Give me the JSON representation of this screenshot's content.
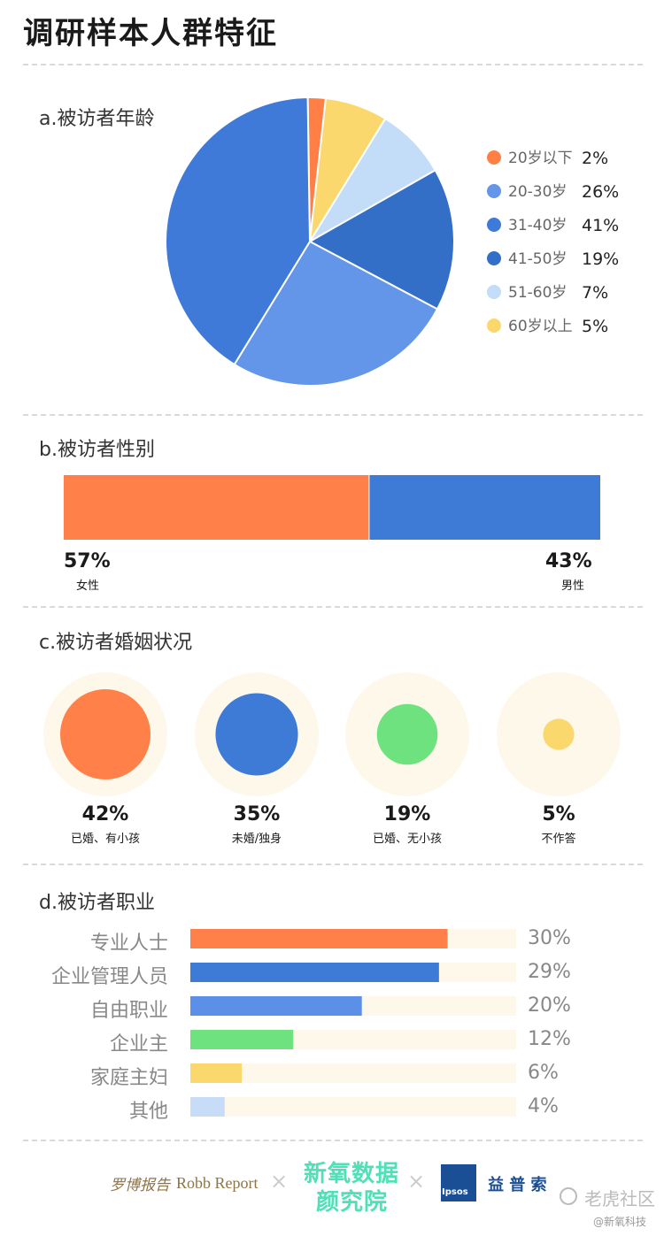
{
  "page": {
    "title": "调研样本人群特征"
  },
  "sections": {
    "age": "a.被访者年龄",
    "gender": "b.被访者性别",
    "marriage": "c.被访者婚姻状况",
    "occupation": "d.被访者职业"
  },
  "chart_data": [
    {
      "type": "pie",
      "title": "a.被访者年龄",
      "labels": [
        "20岁以下",
        "20-30岁",
        "31-40岁",
        "41-50岁",
        "51-60岁",
        "60岁以上"
      ],
      "value_labels": [
        "2%",
        "26%",
        "41%",
        "19%",
        "7%",
        "5%"
      ],
      "values": [
        2,
        26,
        41,
        19,
        7,
        5
      ],
      "pie_values": [
        2,
        7,
        8,
        16,
        26,
        41
      ],
      "pie_colors": [
        "#ff7f45",
        "#fbd86d",
        "#c3dcf7",
        "#336fc6",
        "#6395e9",
        "#3f7ad9"
      ],
      "legend_colors": [
        "#ff7f45",
        "#6395e9",
        "#3f7ad9",
        "#336fc6",
        "#c3dcf7",
        "#fbd86d"
      ],
      "legend_position": "right"
    },
    {
      "type": "bar",
      "title": "b.被访者性别",
      "categories": [
        "女性",
        "男性"
      ],
      "values": [
        57,
        43
      ],
      "value_labels": [
        "57%",
        "43%"
      ],
      "colors": [
        "#ff8049",
        "#3e7bd6"
      ]
    },
    {
      "type": "bar",
      "title": "c.被访者婚姻状况",
      "categories": [
        "已婚、有小孩",
        "未婚/独身",
        "已婚、无小孩",
        "不作答"
      ],
      "values": [
        42,
        35,
        19,
        5
      ],
      "value_labels": [
        "42%",
        "35%",
        "19%",
        "5%"
      ],
      "colors": [
        "#ff8049",
        "#3e7bd6",
        "#6ee27f",
        "#fbd86d"
      ],
      "background_color": "#fdf8e9"
    },
    {
      "type": "bar",
      "title": "d.被访者职业",
      "categories": [
        "专业人士",
        "企业管理人员",
        "自由职业",
        "企业主",
        "家庭主妇",
        "其他"
      ],
      "values": [
        30,
        29,
        20,
        12,
        6,
        4
      ],
      "value_labels": [
        "30%",
        "29%",
        "20%",
        "12%",
        "6%",
        "4%"
      ],
      "colors": [
        "#ff8049",
        "#3e7bd6",
        "#5b8fe8",
        "#6ee27f",
        "#fbd86d",
        "#c6dcf7"
      ],
      "track_color": "#fdf8e9"
    }
  ],
  "footer": {
    "brand1_cn": "罗博报告",
    "brand1_en": "Robb Report",
    "sep": "×",
    "brand2_line1": "新氧数据",
    "brand2_line2": "颜究院",
    "brand3_logo": "Ipsos",
    "brand3_cn": "益 普 索",
    "watermark": "老虎社区",
    "watermark_icon": "speech-bubble-icon",
    "credit": "@新氧科技"
  }
}
